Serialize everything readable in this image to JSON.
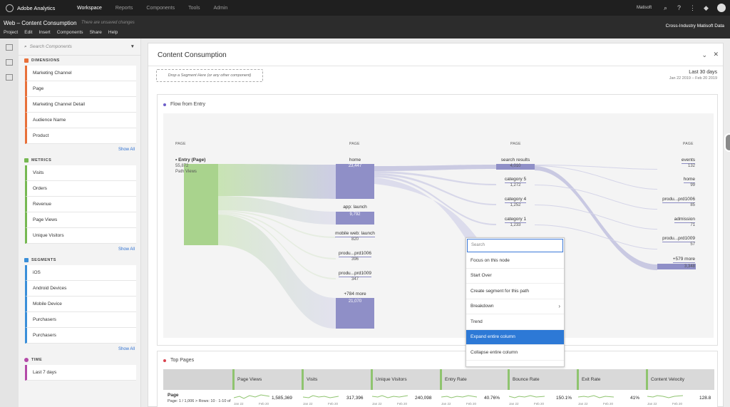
{
  "topbar": {
    "brand": "Adobe Analytics",
    "nav": [
      "Workspace",
      "Reports",
      "Components",
      "Tools",
      "Admin"
    ],
    "active_nav": "Workspace",
    "org": "Matisoft"
  },
  "project": {
    "title": "Web – Content Consumption",
    "unsaved": "There are unsaved changes",
    "menus": [
      "Project",
      "Edit",
      "Insert",
      "Components",
      "Share",
      "Help"
    ],
    "report_suite": "Cross-Industry Matisoft Data"
  },
  "panel": {
    "search_placeholder": "Search Components",
    "dimensions": {
      "title": "DIMENSIONS",
      "color": "#e8703a",
      "items": [
        "Marketing Channel",
        "Page",
        "Marketing Channel Detail",
        "Audience Name",
        "Product"
      ],
      "show_all": "Show All"
    },
    "metrics": {
      "title": "METRICS",
      "color": "#76b852",
      "items": [
        "Visits",
        "Orders",
        "Revenue",
        "Page Views",
        "Unique Visitors"
      ],
      "show_all": "Show All"
    },
    "segments": {
      "title": "SEGMENTS",
      "color": "#3a8fd9",
      "items": [
        "iOS",
        "Android Devices",
        "Mobile Device",
        "Purchasers",
        "Purchasers"
      ],
      "show_all": "Show All"
    },
    "time": {
      "title": "TIME",
      "color": "#b44aa8",
      "items": [
        "Last 7 days"
      ]
    }
  },
  "workspace": {
    "panel_title": "Content Consumption",
    "dropzone": "Drop a Segment Here (or any other component)",
    "date_range": "Last 30 days",
    "date_sub": "Jan 22 2019 – Feb 20 2019"
  },
  "flow": {
    "title": "Flow from Entry",
    "col_label": "PAGE",
    "entry": {
      "label": "• Entry (Page)",
      "value": "55,872",
      "unit": "Path Views"
    },
    "col2": [
      {
        "label": "home",
        "value": "23,447"
      },
      {
        "label": "app: launch",
        "value": "9,792"
      },
      {
        "label": "mobile web: launch",
        "value": "820"
      },
      {
        "label": "produ...prd1006",
        "value": "396"
      },
      {
        "label": "produ...prd1009",
        "value": "347"
      },
      {
        "label": "+784 more",
        "value": "21,070"
      }
    ],
    "col3": [
      {
        "label": "search results",
        "value": "4,010"
      },
      {
        "label": "category 5",
        "value": "1,272"
      },
      {
        "label": "category 4",
        "value": "1,252"
      },
      {
        "label": "category 1",
        "value": "1,233"
      }
    ],
    "col4": [
      {
        "label": "events",
        "value": "132"
      },
      {
        "label": "home",
        "value": "99"
      },
      {
        "label": "produ...prd1006",
        "value": "85"
      },
      {
        "label": "admission",
        "value": "71"
      },
      {
        "label": "produ...prd1009",
        "value": "57"
      },
      {
        "label": "+579 more",
        "value": "3,348"
      }
    ]
  },
  "context_menu": {
    "search_placeholder": "Search",
    "items": [
      "Focus on this node",
      "Start Over",
      "Create segment for this path",
      "Breakdown",
      "Trend",
      "Expand entire column",
      "Collapse entire column"
    ],
    "selected": "Expand entire column"
  },
  "top_pages": {
    "title": "Top Pages",
    "columns": [
      "Page Views",
      "Visits",
      "Unique Visitors",
      "Entry Rate",
      "Bounce Rate",
      "Exit Rate",
      "Content Velocity"
    ],
    "row_label": "Page",
    "row_sub": "Page: 1 / 1,006 > Rows: 10 · 1-10 of",
    "values": [
      "1,585,369",
      "317,396",
      "240,098",
      "40.76%",
      "150.1%",
      "41%",
      "128.8"
    ],
    "date_start": "Jan 22",
    "date_end": "Feb 20"
  }
}
